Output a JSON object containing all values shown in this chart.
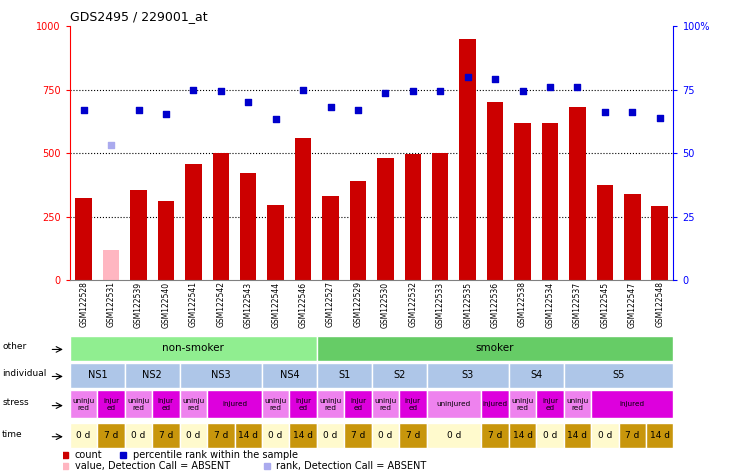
{
  "title": "GDS2495 / 229001_at",
  "samples": [
    "GSM122528",
    "GSM122531",
    "GSM122539",
    "GSM122540",
    "GSM122541",
    "GSM122542",
    "GSM122543",
    "GSM122544",
    "GSM122546",
    "GSM122527",
    "GSM122529",
    "GSM122530",
    "GSM122532",
    "GSM122533",
    "GSM122535",
    "GSM122536",
    "GSM122538",
    "GSM122534",
    "GSM122537",
    "GSM122545",
    "GSM122547",
    "GSM122548"
  ],
  "counts": [
    325,
    120,
    355,
    310,
    455,
    500,
    420,
    295,
    560,
    330,
    390,
    480,
    495,
    500,
    950,
    700,
    620,
    620,
    680,
    375,
    340,
    290
  ],
  "absent_count": [
    null,
    120,
    null,
    null,
    null,
    null,
    null,
    null,
    null,
    null,
    null,
    null,
    null,
    null,
    null,
    null,
    null,
    null,
    null,
    null,
    null,
    null
  ],
  "ranks": [
    67,
    null,
    67,
    65.5,
    75,
    74.5,
    70,
    63.5,
    75,
    68,
    67,
    73.5,
    74.5,
    74.5,
    80,
    79,
    74.5,
    76,
    76,
    66,
    66,
    64
  ],
  "absent_rank": [
    null,
    53,
    null,
    null,
    null,
    null,
    null,
    null,
    null,
    null,
    null,
    null,
    null,
    null,
    null,
    null,
    null,
    null,
    null,
    null,
    null,
    null
  ],
  "other_groups": [
    {
      "label": "non-smoker",
      "start": 0,
      "end": 9,
      "color": "#90ee90"
    },
    {
      "label": "smoker",
      "start": 9,
      "end": 22,
      "color": "#66cc66"
    }
  ],
  "individual_groups": [
    {
      "label": "NS1",
      "start": 0,
      "end": 2,
      "color": "#aec6e8"
    },
    {
      "label": "NS2",
      "start": 2,
      "end": 4,
      "color": "#aec6e8"
    },
    {
      "label": "NS3",
      "start": 4,
      "end": 7,
      "color": "#aec6e8"
    },
    {
      "label": "NS4",
      "start": 7,
      "end": 9,
      "color": "#aec6e8"
    },
    {
      "label": "S1",
      "start": 9,
      "end": 11,
      "color": "#aec6e8"
    },
    {
      "label": "S2",
      "start": 11,
      "end": 13,
      "color": "#aec6e8"
    },
    {
      "label": "S3",
      "start": 13,
      "end": 16,
      "color": "#aec6e8"
    },
    {
      "label": "S4",
      "start": 16,
      "end": 18,
      "color": "#aec6e8"
    },
    {
      "label": "S5",
      "start": 18,
      "end": 22,
      "color": "#aec6e8"
    }
  ],
  "stress_groups": [
    {
      "label": "uninju\nred",
      "start": 0,
      "end": 1,
      "color": "#ee82ee"
    },
    {
      "label": "injur\ned",
      "start": 1,
      "end": 2,
      "color": "#dd00dd"
    },
    {
      "label": "uninju\nred",
      "start": 2,
      "end": 3,
      "color": "#ee82ee"
    },
    {
      "label": "injur\ned",
      "start": 3,
      "end": 4,
      "color": "#dd00dd"
    },
    {
      "label": "uninju\nred",
      "start": 4,
      "end": 5,
      "color": "#ee82ee"
    },
    {
      "label": "injured",
      "start": 5,
      "end": 7,
      "color": "#dd00dd"
    },
    {
      "label": "uninju\nred",
      "start": 7,
      "end": 8,
      "color": "#ee82ee"
    },
    {
      "label": "injur\ned",
      "start": 8,
      "end": 9,
      "color": "#dd00dd"
    },
    {
      "label": "uninju\nred",
      "start": 9,
      "end": 10,
      "color": "#ee82ee"
    },
    {
      "label": "injur\ned",
      "start": 10,
      "end": 11,
      "color": "#dd00dd"
    },
    {
      "label": "uninju\nred",
      "start": 11,
      "end": 12,
      "color": "#ee82ee"
    },
    {
      "label": "injur\ned",
      "start": 12,
      "end": 13,
      "color": "#dd00dd"
    },
    {
      "label": "uninjured",
      "start": 13,
      "end": 15,
      "color": "#ee82ee"
    },
    {
      "label": "injured",
      "start": 15,
      "end": 16,
      "color": "#dd00dd"
    },
    {
      "label": "uninju\nred",
      "start": 16,
      "end": 17,
      "color": "#ee82ee"
    },
    {
      "label": "injur\ned",
      "start": 17,
      "end": 18,
      "color": "#dd00dd"
    },
    {
      "label": "uninju\nred",
      "start": 18,
      "end": 19,
      "color": "#ee82ee"
    },
    {
      "label": "injured",
      "start": 19,
      "end": 22,
      "color": "#dd00dd"
    }
  ],
  "time_groups": [
    {
      "label": "0 d",
      "start": 0,
      "end": 1,
      "color": "#fffacd"
    },
    {
      "label": "7 d",
      "start": 1,
      "end": 2,
      "color": "#c8960c"
    },
    {
      "label": "0 d",
      "start": 2,
      "end": 3,
      "color": "#fffacd"
    },
    {
      "label": "7 d",
      "start": 3,
      "end": 4,
      "color": "#c8960c"
    },
    {
      "label": "0 d",
      "start": 4,
      "end": 5,
      "color": "#fffacd"
    },
    {
      "label": "7 d",
      "start": 5,
      "end": 6,
      "color": "#c8960c"
    },
    {
      "label": "14 d",
      "start": 6,
      "end": 7,
      "color": "#c8960c"
    },
    {
      "label": "0 d",
      "start": 7,
      "end": 8,
      "color": "#fffacd"
    },
    {
      "label": "14 d",
      "start": 8,
      "end": 9,
      "color": "#c8960c"
    },
    {
      "label": "0 d",
      "start": 9,
      "end": 10,
      "color": "#fffacd"
    },
    {
      "label": "7 d",
      "start": 10,
      "end": 11,
      "color": "#c8960c"
    },
    {
      "label": "0 d",
      "start": 11,
      "end": 12,
      "color": "#fffacd"
    },
    {
      "label": "7 d",
      "start": 12,
      "end": 13,
      "color": "#c8960c"
    },
    {
      "label": "0 d",
      "start": 13,
      "end": 15,
      "color": "#fffacd"
    },
    {
      "label": "7 d",
      "start": 15,
      "end": 16,
      "color": "#c8960c"
    },
    {
      "label": "14 d",
      "start": 16,
      "end": 17,
      "color": "#c8960c"
    },
    {
      "label": "0 d",
      "start": 17,
      "end": 18,
      "color": "#fffacd"
    },
    {
      "label": "14 d",
      "start": 18,
      "end": 19,
      "color": "#c8960c"
    },
    {
      "label": "0 d",
      "start": 19,
      "end": 20,
      "color": "#fffacd"
    },
    {
      "label": "7 d",
      "start": 20,
      "end": 21,
      "color": "#c8960c"
    },
    {
      "label": "14 d",
      "start": 21,
      "end": 22,
      "color": "#c8960c"
    }
  ],
  "bar_color": "#cc0000",
  "absent_bar_color": "#ffb6c1",
  "rank_color": "#0000cc",
  "absent_rank_color": "#aaaaee",
  "ylim_left": [
    0,
    1000
  ],
  "ylim_right": [
    0,
    100
  ],
  "yticks_left": [
    0,
    250,
    500,
    750,
    1000
  ],
  "yticks_right": [
    0,
    25,
    50,
    75,
    100
  ],
  "hlines": [
    250,
    500,
    750
  ],
  "legend": [
    {
      "color": "#cc0000",
      "label": "count"
    },
    {
      "color": "#0000cc",
      "label": "percentile rank within the sample"
    },
    {
      "color": "#ffb6c1",
      "label": "value, Detection Call = ABSENT"
    },
    {
      "color": "#aaaaee",
      "label": "rank, Detection Call = ABSENT"
    }
  ]
}
